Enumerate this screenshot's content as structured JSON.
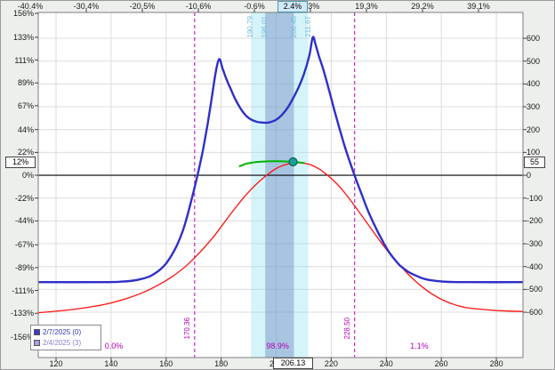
{
  "chart_data": {
    "type": "line",
    "axis_ranges": {
      "x": [
        113.53,
        289.67
      ],
      "pct": [
        -175.66,
        156.9
      ]
    },
    "top_axis": {
      "ticks": [
        "-40.4%",
        "-30.4%",
        "-20.5%",
        "-10.6%",
        "-0.6%",
        "9.3%",
        "19.3%",
        "29.2%",
        "39.1%"
      ],
      "highlight": "2.4%"
    },
    "left_axis": {
      "ticks": [
        "156%",
        "133%",
        "111%",
        "89%",
        "67%",
        "44%",
        "22%",
        "0%",
        "-22%",
        "-44%",
        "-67%",
        "-89%",
        "-111%",
        "-133%",
        "-156%"
      ],
      "highlight": "12%"
    },
    "right_axis": {
      "ticks": [
        "600",
        "500",
        "400",
        "300",
        "200",
        "100",
        "0",
        "-100",
        "-200",
        "-300",
        "-400",
        "-500",
        "-600"
      ],
      "highlight": "55"
    },
    "bottom_axis": {
      "ticks": [
        "120",
        "140",
        "160",
        "180",
        "200",
        "220",
        "240",
        "260",
        "280"
      ],
      "current_price": "206.13"
    },
    "series": [
      {
        "name": "expiration-line",
        "legend": "2/7/2025 (0)",
        "color": "#2f2fc8",
        "width": 2.4,
        "points": [
          [
            113.5,
            -103
          ],
          [
            138,
            -103
          ],
          [
            144,
            -102.5
          ],
          [
            148,
            -101.5
          ],
          [
            151,
            -100
          ],
          [
            154,
            -97.5
          ],
          [
            156,
            -94.5
          ],
          [
            158,
            -90.5
          ],
          [
            160,
            -85
          ],
          [
            162,
            -77
          ],
          [
            164,
            -67
          ],
          [
            166,
            -54
          ],
          [
            167.5,
            -41
          ],
          [
            169,
            -26
          ],
          [
            170.5,
            -10
          ],
          [
            172,
            7
          ],
          [
            173.5,
            26
          ],
          [
            175,
            48
          ],
          [
            176.5,
            73
          ],
          [
            178,
            99
          ],
          [
            179.3,
            112
          ],
          [
            180.5,
            103
          ],
          [
            182,
            92
          ],
          [
            183.5,
            83
          ],
          [
            185,
            74
          ],
          [
            187,
            64.5
          ],
          [
            189,
            57.5
          ],
          [
            191,
            53.5
          ],
          [
            193,
            51.5
          ],
          [
            195,
            50.8
          ],
          [
            196.5,
            50.6
          ],
          [
            198,
            51.3
          ],
          [
            200,
            53.5
          ],
          [
            202,
            58
          ],
          [
            204,
            64.5
          ],
          [
            206,
            73.5
          ],
          [
            208,
            84
          ],
          [
            210,
            97
          ],
          [
            212,
            115
          ],
          [
            213.3,
            133
          ],
          [
            214.3,
            126
          ],
          [
            215.5,
            115
          ],
          [
            217,
            103
          ],
          [
            219,
            84
          ],
          [
            221,
            64
          ],
          [
            223,
            45
          ],
          [
            225,
            27
          ],
          [
            227,
            11
          ],
          [
            229,
            -4
          ],
          [
            231,
            -18
          ],
          [
            233,
            -32
          ],
          [
            235,
            -44
          ],
          [
            237,
            -55
          ],
          [
            239,
            -65
          ],
          [
            241,
            -74
          ],
          [
            243,
            -81
          ],
          [
            245,
            -87
          ],
          [
            248,
            -93
          ],
          [
            251,
            -97
          ],
          [
            254,
            -100
          ],
          [
            258,
            -101.8
          ],
          [
            263,
            -102.8
          ],
          [
            270,
            -103
          ],
          [
            289.5,
            -103
          ]
        ]
      },
      {
        "name": "current-line",
        "legend": "2/4/2025 (3)",
        "color": "#ff1111",
        "width": 1.3,
        "points": [
          [
            113.5,
            -132.5
          ],
          [
            120,
            -131
          ],
          [
            127,
            -129
          ],
          [
            134,
            -126.3
          ],
          [
            140,
            -123
          ],
          [
            146,
            -118.5
          ],
          [
            152,
            -112.5
          ],
          [
            157,
            -106
          ],
          [
            162,
            -98
          ],
          [
            167,
            -88
          ],
          [
            172,
            -75
          ],
          [
            177,
            -60
          ],
          [
            181,
            -46
          ],
          [
            185,
            -32
          ],
          [
            189,
            -19
          ],
          [
            193,
            -8
          ],
          [
            197,
            1
          ],
          [
            200,
            6.5
          ],
          [
            203,
            10
          ],
          [
            206,
            11.8
          ],
          [
            209,
            12
          ],
          [
            212,
            10.5
          ],
          [
            215,
            7
          ],
          [
            218,
            1.5
          ],
          [
            221,
            -5.5
          ],
          [
            224,
            -14
          ],
          [
            227,
            -24
          ],
          [
            230,
            -35
          ],
          [
            233,
            -46
          ],
          [
            236,
            -57
          ],
          [
            239,
            -68
          ],
          [
            242,
            -78
          ],
          [
            245,
            -87
          ],
          [
            248,
            -95.5
          ],
          [
            251,
            -103
          ],
          [
            254,
            -109.5
          ],
          [
            257,
            -115
          ],
          [
            260,
            -119.5
          ],
          [
            264,
            -124
          ],
          [
            268,
            -127
          ],
          [
            272,
            -128.5
          ],
          [
            276,
            -129.5
          ],
          [
            280,
            -130.3
          ],
          [
            284,
            -130.8
          ],
          [
            289.5,
            -131.3
          ]
        ]
      },
      {
        "name": "active-segment",
        "legend": "",
        "color": "#00b400",
        "width": 2,
        "points": [
          [
            186.5,
            8.5
          ],
          [
            189,
            11
          ],
          [
            191.5,
            12.3
          ],
          [
            194,
            13
          ],
          [
            197,
            13.4
          ],
          [
            200,
            13.5
          ],
          [
            203,
            13.3
          ],
          [
            206,
            12.9
          ],
          [
            208,
            12.5
          ],
          [
            210.3,
            11.8
          ]
        ]
      }
    ],
    "marker": {
      "price": 206.13,
      "pct": 12.9,
      "fill": "#18a096",
      "stroke": "#0a5f52"
    },
    "vlines": [
      {
        "price": 170.36,
        "label": "170.36"
      },
      {
        "price": 228.5,
        "label": "228.50"
      }
    ],
    "bands": {
      "outer": {
        "from": 190.79,
        "to": 211.67,
        "from_label": "190.79",
        "to_label": "211.67",
        "fill": "rgba(135,224,240,0.35)"
      },
      "inner": {
        "from": 196.01,
        "to": 206.45,
        "from_label": "196.01",
        "to_label": "206.45",
        "fill": "rgba(110,140,195,0.45)"
      }
    },
    "prob_labels": [
      {
        "text": "0.0%",
        "price": 141
      },
      {
        "text": "98.9%",
        "price": 200.5
      },
      {
        "text": "1.1%",
        "price": 252
      }
    ],
    "legend": [
      {
        "label": "2/7/2025 (0)",
        "swatch": "#3c3cc8",
        "text_color": "#3434b4"
      },
      {
        "label": "2/4/2025 (3)",
        "swatch": "#a79ae8",
        "text_color": "#8a7ed2"
      }
    ],
    "colors": {
      "grid": "#dcdcdc",
      "zero_line": "#000000",
      "border": "#7d7d7d",
      "vline": "#b400b4",
      "prob_text": "#b400b4",
      "band_label": "#74b9d6",
      "tick_text": "#1a1a1a"
    }
  }
}
